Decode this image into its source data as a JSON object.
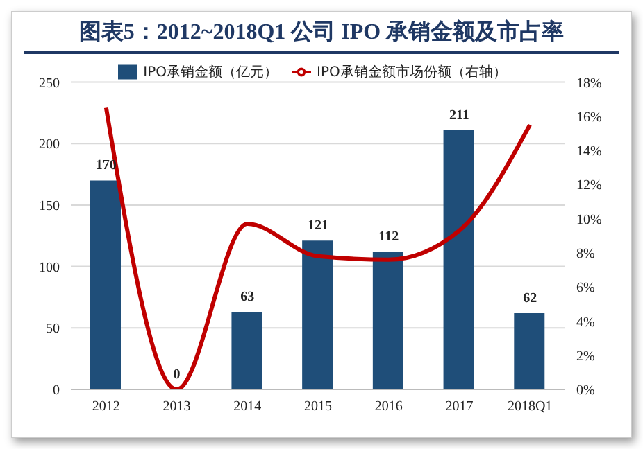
{
  "chart_data": {
    "type": "bar",
    "title": "图表5：2012~2018Q1 公司 IPO 承销金额及市占率",
    "categories": [
      "2012",
      "2013",
      "2014",
      "2015",
      "2016",
      "2017",
      "2018Q1"
    ],
    "series": [
      {
        "name": "IPO承销金额（亿元）",
        "color": "#1f4e79",
        "values": [
          170,
          0,
          63,
          121,
          112,
          211,
          62
        ],
        "value_labels": [
          "170",
          "0",
          "63",
          "121",
          "112",
          "211",
          "62"
        ]
      },
      {
        "name": "IPO承销金额市场份额（右轴）",
        "type": "line",
        "axis": "y2",
        "color": "#c00000",
        "values": [
          16.5,
          0,
          9.7,
          7.8,
          7.6,
          9.3,
          15.5
        ]
      }
    ],
    "ylim": [
      0,
      250
    ],
    "yticks": [
      0,
      50,
      100,
      150,
      200,
      250
    ],
    "y2lim": [
      0,
      18
    ],
    "y2ticks": [
      {
        "value": 0,
        "label": "0%"
      },
      {
        "value": 2,
        "label": "2%"
      },
      {
        "value": 4,
        "label": "4%"
      },
      {
        "value": 6,
        "label": "6%"
      },
      {
        "value": 8,
        "label": "8%"
      },
      {
        "value": 10,
        "label": "10%"
      },
      {
        "value": 12,
        "label": "12%"
      },
      {
        "value": 14,
        "label": "14%"
      },
      {
        "value": 16,
        "label": "16%"
      },
      {
        "value": 18,
        "label": "18%"
      }
    ],
    "grid": "y",
    "legend": "top",
    "marker": "none"
  }
}
